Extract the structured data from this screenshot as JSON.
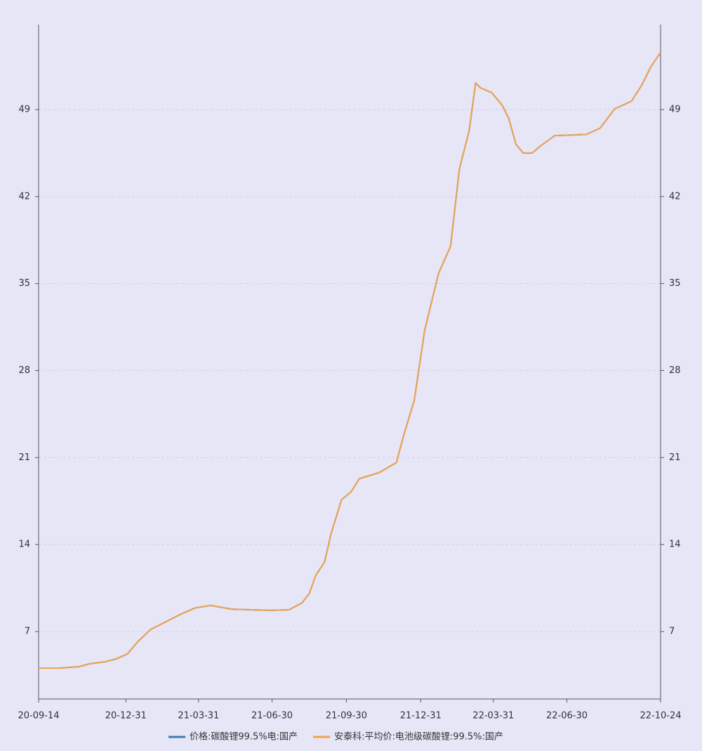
{
  "chart_data": {
    "type": "line",
    "x": [
      "20-09-14",
      "20-10-10",
      "20-11-03",
      "20-11-16",
      "20-12-06",
      "20-12-19",
      "21-01-02",
      "21-01-15",
      "21-01-31",
      "21-02-22",
      "21-03-09",
      "21-03-27",
      "21-04-15",
      "21-05-11",
      "21-06-28",
      "21-07-21",
      "21-08-06",
      "21-08-15",
      "21-08-23",
      "21-09-03",
      "21-09-11",
      "21-09-24",
      "21-10-06",
      "21-10-16",
      "21-11-10",
      "21-12-01",
      "21-12-10",
      "21-12-23",
      "22-01-05",
      "22-01-22",
      "22-02-06",
      "22-02-17",
      "22-03-01",
      "22-03-09",
      "22-03-15",
      "22-03-29",
      "22-04-11",
      "22-04-19",
      "22-04-28",
      "22-05-07",
      "22-05-18",
      "22-05-28",
      "22-06-15",
      "22-07-24",
      "22-08-10",
      "22-08-28",
      "22-09-18",
      "22-10-01",
      "22-10-12",
      "22-10-24"
    ],
    "series": [
      {
        "name": "价格:碳酸锂99.5%电:国产",
        "color": "#3d7bb0",
        "values": [
          4.06,
          4.06,
          4.17,
          4.4,
          4.57,
          4.8,
          5.2,
          6.2,
          7.17,
          7.9,
          8.4,
          8.9,
          9.1,
          8.8,
          8.7,
          8.75,
          9.3,
          10.05,
          11.5,
          12.6,
          14.85,
          17.6,
          18.25,
          19.3,
          19.8,
          20.6,
          22.8,
          25.6,
          31.25,
          35.8,
          38.0,
          44.25,
          47.3,
          51.15,
          50.75,
          50.36,
          49.34,
          48.3,
          46.2,
          45.5,
          45.5,
          46.06,
          46.9,
          47.0,
          47.5,
          49.05,
          49.68,
          51.0,
          52.45,
          53.6
        ]
      },
      {
        "name": "安泰科:平均价:电池级碳酸锂:99.5%:国产",
        "color": "#f0a24e",
        "values": [
          4.06,
          4.06,
          4.17,
          4.4,
          4.57,
          4.8,
          5.2,
          6.2,
          7.17,
          7.9,
          8.4,
          8.9,
          9.1,
          8.8,
          8.7,
          8.75,
          9.3,
          10.05,
          11.5,
          12.6,
          14.85,
          17.6,
          18.25,
          19.3,
          19.8,
          20.6,
          22.8,
          25.6,
          31.25,
          35.8,
          38.0,
          44.25,
          47.3,
          51.15,
          50.75,
          50.36,
          49.34,
          48.3,
          46.2,
          45.5,
          45.5,
          46.06,
          46.9,
          47.0,
          47.5,
          49.05,
          49.68,
          51.0,
          52.45,
          53.6
        ]
      }
    ],
    "xlim": [
      "20-09-14",
      "22-10-24"
    ],
    "xticks": [
      "20-09-14",
      "20-12-31",
      "21-03-31",
      "21-06-30",
      "21-09-30",
      "21-12-31",
      "22-03-31",
      "22-06-30",
      "22-10-24"
    ],
    "ylim": [
      1.57,
      55.84
    ],
    "yticks": [
      7,
      14,
      21,
      28,
      35,
      42,
      49
    ],
    "grid": true
  }
}
